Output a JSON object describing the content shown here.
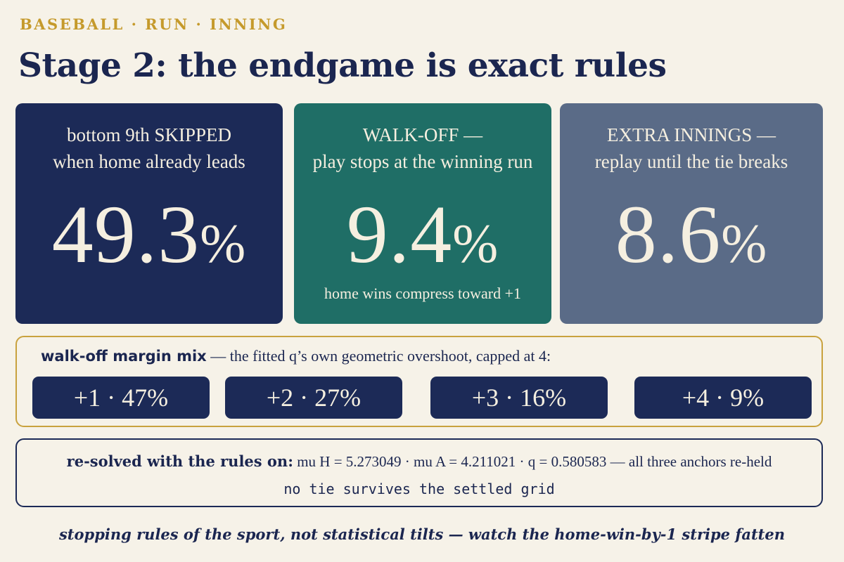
{
  "kicker": "BASEBALL · RUN · INNING",
  "title": "Stage 2: the endgame is exact rules",
  "cards": [
    {
      "lead_line1": "bottom 9th SKIPPED",
      "lead_line2": "when home already leads",
      "value": "49.3",
      "unit": "%",
      "color": "#1c2a57"
    },
    {
      "lead_line1": "WALK-OFF —",
      "lead_line2": "play stops at the winning run",
      "value": "9.4",
      "unit": "%",
      "foot": "home wins compress toward +1",
      "color": "#1f6e66"
    },
    {
      "lead_line1": "EXTRA INNINGS —",
      "lead_line2": "replay until the tie breaks",
      "value": "8.6",
      "unit": "%",
      "color": "#5a6b87"
    }
  ],
  "mix": {
    "title_bold": "walk-off margin mix",
    "title_rest": " — the fitted q’s own geometric overshoot, capped at 4:",
    "pills": [
      "+1 · 47%",
      "+2 · 27%",
      "+3 · 16%",
      "+4 · 9%"
    ]
  },
  "resolve": {
    "line1_bold": "re-solved with the rules on:",
    "line1_rest": "  mu H = 5.273049 · mu A = 4.211021 · q = 0.580583 — all three anchors re-held",
    "line2": "no tie survives the settled grid"
  },
  "footer": "stopping rules of the sport, not statistical tilts — watch the home-win-by-1 stripe fatten",
  "colors": {
    "accent_gold": "#c59a2c",
    "navy": "#1c2a57",
    "teal": "#1f6e66",
    "slate": "#5a6b87",
    "background": "#f6f2e8"
  }
}
